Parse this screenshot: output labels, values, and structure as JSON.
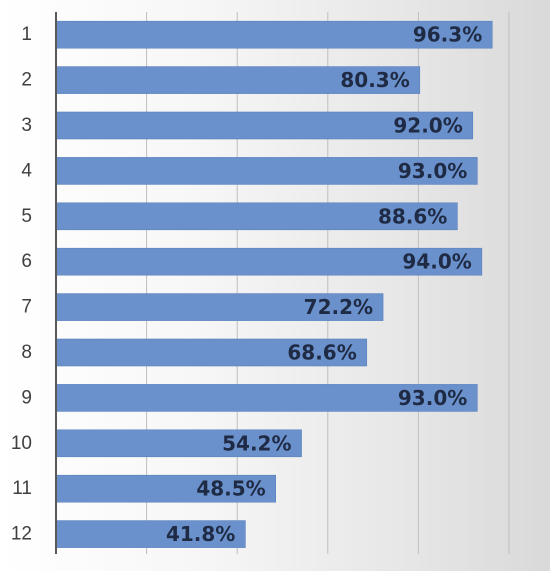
{
  "chart_data": {
    "type": "bar",
    "orientation": "horizontal",
    "categories": [
      "1",
      "2",
      "3",
      "4",
      "5",
      "6",
      "7",
      "8",
      "9",
      "10",
      "11",
      "12"
    ],
    "values": [
      96.3,
      80.3,
      92.0,
      93.0,
      88.6,
      94.0,
      72.2,
      68.6,
      93.0,
      54.2,
      48.5,
      41.8
    ],
    "data_labels": [
      "96.3%",
      "80.3%",
      "92.0%",
      "93.0%",
      "88.6%",
      "94.0%",
      "72.2%",
      "68.6%",
      "93.0%",
      "54.2%",
      "48.5%",
      "41.8%"
    ],
    "title": "",
    "xlabel": "",
    "ylabel": "",
    "xlim": [
      0,
      100
    ],
    "grid": true,
    "legend": "none",
    "colors": {
      "bar": "#6a91cb",
      "bar_edge": "#5a82bd",
      "gridline": "#bfbfbf",
      "axis": "#595959",
      "label": "#1f2a44"
    }
  }
}
